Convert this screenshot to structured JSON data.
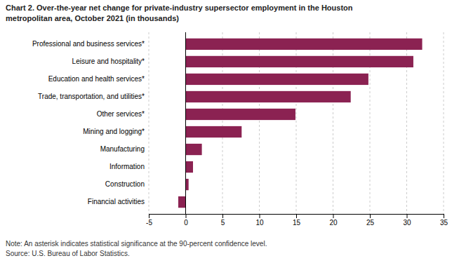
{
  "chart_data": {
    "type": "bar",
    "orientation": "horizontal",
    "title": [
      "Chart 2. Over-the-year net change for private-industry supersector employment in the Houston",
      "metropolitan area, October 2021 (in thousands)"
    ],
    "annotations": [
      "Note: An asterisk indicates statistical significance at the 90-percent confidence level.",
      "Source: U.S. Bureau of Labor Statistics."
    ],
    "categories": [
      "Financial activities",
      "Construction",
      "Information",
      "Manufacturing",
      "Mining and logging*",
      "Other services*",
      "Trade, transportation, and utilities*",
      "Education and health services*",
      "Leisure and hospitality*",
      "Professional and business services*"
    ],
    "values": [
      -1.0,
      0.4,
      1.0,
      2.2,
      7.6,
      14.9,
      22.4,
      24.8,
      30.9,
      32.1
    ],
    "color": "#8B2252",
    "xlim": [
      -5,
      35
    ],
    "xticks": [
      -5,
      0,
      5,
      10,
      15,
      20,
      25,
      30,
      35
    ],
    "grid": true
  }
}
